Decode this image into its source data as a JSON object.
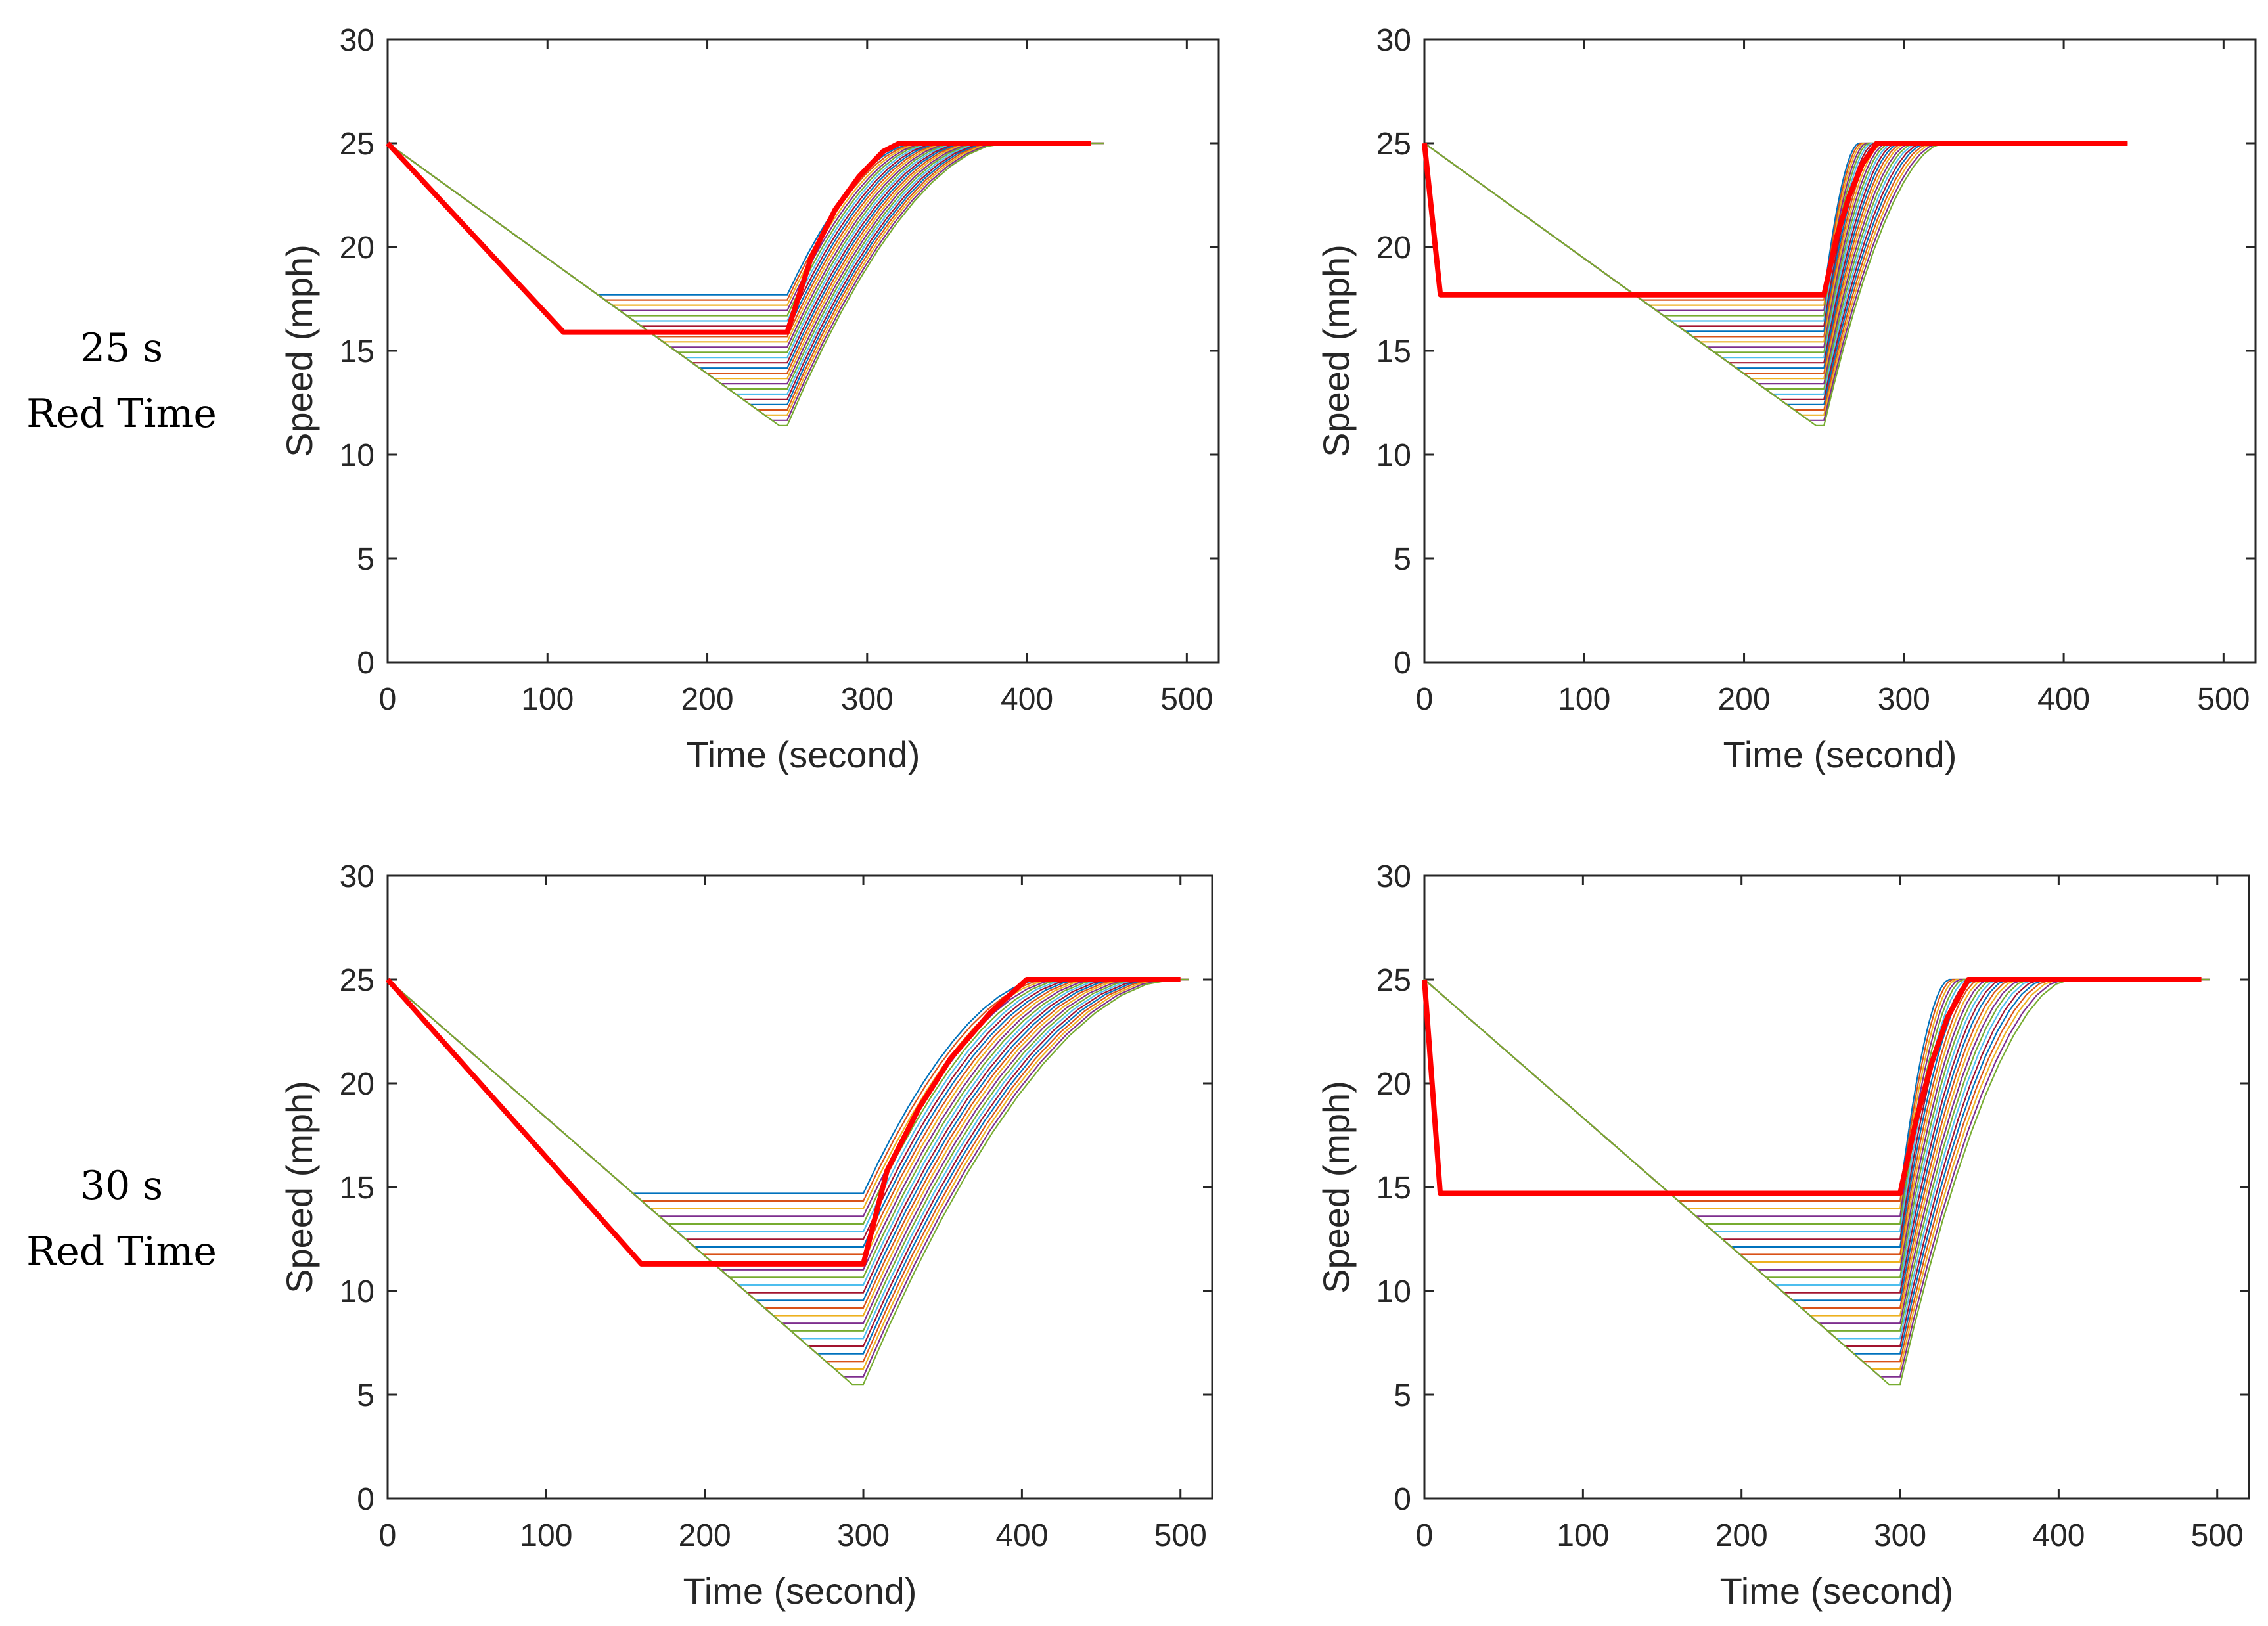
{
  "row_labels": [
    {
      "line1": "25 s",
      "line2": "Red Time"
    },
    {
      "line1": "30 s",
      "line2": "Red Time"
    }
  ],
  "colors": {
    "highlight": "#ff0000",
    "axis": "#262626",
    "palette": [
      "#0072bd",
      "#d95319",
      "#edb120",
      "#7e2f8e",
      "#77ac30",
      "#4dbeee",
      "#a2142f"
    ]
  },
  "chart_data": [
    {
      "type": "line",
      "title": "",
      "xlabel": "Time (second)",
      "ylabel": "Speed (mph)",
      "xlim": [
        0,
        520
      ],
      "ylim": [
        0,
        30
      ],
      "xticks": [
        0,
        100,
        200,
        300,
        400,
        500
      ],
      "yticks": [
        0,
        5,
        10,
        15,
        20,
        25,
        30
      ],
      "series_count": 26,
      "series_description": "one trajectory per start time: decelerate from 25 mph at t=0 to a plateau speed (17.7 down to 11.5 mph, reached progressively later), hold until t=250 s, then accelerate back to 25 mph",
      "highlight": {
        "name": "selected trajectory",
        "x": [
          0,
          110,
          250,
          265,
          280,
          295,
          310,
          320,
          440
        ],
        "y": [
          25,
          15.9,
          15.9,
          19.5,
          21.8,
          23.4,
          24.6,
          25,
          25
        ]
      },
      "envelope_min": {
        "x": [
          0,
          245,
          250
        ],
        "y": [
          25,
          11.4,
          11.4
        ]
      },
      "red_end": 250,
      "series_end_x": 448
    },
    {
      "type": "line",
      "title": "",
      "xlabel": "Time (second)",
      "ylabel": "Speed (mph)",
      "xlim": [
        0,
        520
      ],
      "ylim": [
        0,
        30
      ],
      "xticks": [
        0,
        100,
        200,
        300,
        400,
        500
      ],
      "yticks": [
        0,
        5,
        10,
        15,
        20,
        25,
        30
      ],
      "series_count": 26,
      "series_description": "one trajectory per start time: decelerate from 25 mph to a plateau speed (17.7 down to 11.5 mph), hold until t=250 s, then accelerate sharply back to 25 mph",
      "highlight": {
        "name": "selected trajectory",
        "x": [
          0,
          10,
          250,
          258,
          266,
          274,
          283,
          440
        ],
        "y": [
          25,
          17.7,
          17.7,
          20.5,
          22.5,
          24,
          25,
          25
        ]
      },
      "envelope_min": {
        "x": [
          0,
          245,
          250
        ],
        "y": [
          25,
          11.4,
          11.4
        ]
      },
      "red_end": 250,
      "series_end_x": 440
    },
    {
      "type": "line",
      "title": "",
      "xlabel": "Time (second)",
      "ylabel": "Speed (mph)",
      "xlim": [
        0,
        520
      ],
      "ylim": [
        0,
        30
      ],
      "xticks": [
        0,
        100,
        200,
        300,
        400,
        500
      ],
      "yticks": [
        0,
        5,
        10,
        15,
        20,
        25,
        30
      ],
      "series_count": 26,
      "series_description": "one trajectory per start time: decelerate from 25 mph to a plateau speed (14.7 down to 5.5 mph), hold until t=300 s, then accelerate back to 25 mph",
      "highlight": {
        "name": "selected trajectory",
        "x": [
          0,
          160,
          300,
          315,
          335,
          355,
          380,
          403,
          500
        ],
        "y": [
          25,
          11.3,
          11.3,
          15.8,
          18.8,
          21.2,
          23.4,
          25,
          25
        ]
      },
      "envelope_min": {
        "x": [
          0,
          293,
          300
        ],
        "y": [
          25,
          5.5,
          5.5
        ]
      },
      "red_end": 300,
      "series_end_x": 505
    },
    {
      "type": "line",
      "title": "",
      "xlabel": "Time (second)",
      "ylabel": "Speed (mph)",
      "xlim": [
        0,
        520
      ],
      "ylim": [
        0,
        30
      ],
      "xticks": [
        0,
        100,
        200,
        300,
        400,
        500
      ],
      "yticks": [
        0,
        5,
        10,
        15,
        20,
        25,
        30
      ],
      "series_count": 26,
      "series_description": "one trajectory per start time: decelerate from 25 mph to a plateau speed (14.7 down to 5.5 mph), hold until t=300 s, then accelerate back to 25 mph",
      "highlight": {
        "name": "selected trajectory",
        "x": [
          0,
          10,
          300,
          310,
          320,
          330,
          343,
          490
        ],
        "y": [
          25,
          14.7,
          14.7,
          18.2,
          21,
          23.2,
          25,
          25
        ]
      },
      "envelope_min": {
        "x": [
          0,
          293,
          300
        ],
        "y": [
          25,
          5.5,
          5.5
        ]
      },
      "red_end": 300,
      "series_end_x": 495
    }
  ]
}
